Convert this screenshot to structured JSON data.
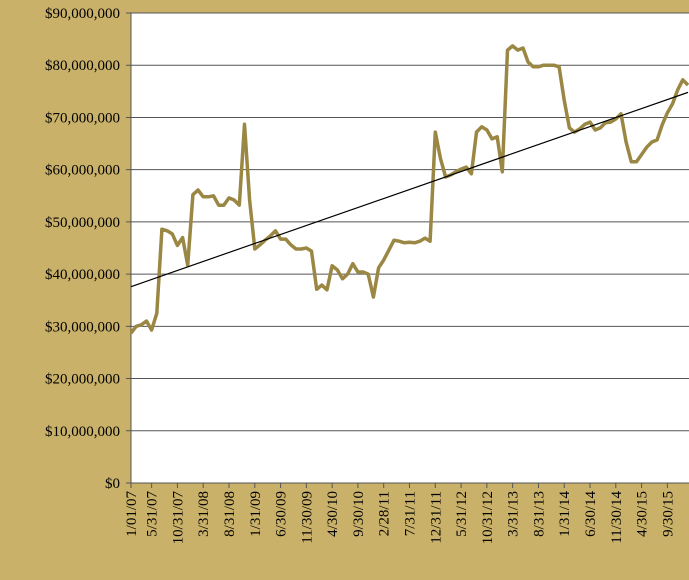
{
  "chart_data": {
    "type": "line",
    "categories": [
      "1/01/07",
      null,
      null,
      null,
      "5/31/07",
      null,
      null,
      null,
      null,
      "10/31/07",
      null,
      null,
      null,
      null,
      "3/31/08",
      null,
      null,
      null,
      null,
      "8/31/08",
      null,
      null,
      null,
      null,
      "1/31/09",
      null,
      null,
      null,
      null,
      "6/30/09",
      null,
      null,
      null,
      null,
      "11/30/09",
      null,
      null,
      null,
      null,
      "4/30/10",
      null,
      null,
      null,
      null,
      "9/30/10",
      null,
      null,
      null,
      null,
      "2/28/11",
      null,
      null,
      null,
      null,
      "7/31/11",
      null,
      null,
      null,
      null,
      "12/31/11",
      null,
      null,
      null,
      null,
      "5/31/12",
      null,
      null,
      null,
      null,
      "10/31/12",
      null,
      null,
      null,
      null,
      "3/31/13",
      null,
      null,
      null,
      null,
      "8/31/13",
      null,
      null,
      null,
      null,
      "1/31/14",
      null,
      null,
      null,
      null,
      "6/30/14",
      null,
      null,
      null,
      null,
      "11/30/14",
      null,
      null,
      null,
      null,
      "4/30/15",
      null,
      null,
      null,
      null,
      "9/30/15",
      null,
      null,
      null,
      null
    ],
    "series": [
      {
        "color": "#9a8743",
        "values": [
          28700000,
          30000000,
          30300000,
          31000000,
          29300000,
          32500000,
          48600000,
          48300000,
          47700000,
          45500000,
          47000000,
          41700000,
          55200000,
          56100000,
          54800000,
          54800000,
          55000000,
          53200000,
          53200000,
          54600000,
          54200000,
          53200000,
          68700000,
          54200000,
          44800000,
          45600000,
          46500000,
          47300000,
          48300000,
          46700000,
          46700000,
          45600000,
          44800000,
          44800000,
          45000000,
          44400000,
          37100000,
          37900000,
          37000000,
          41600000,
          40800000,
          39100000,
          40000000,
          42000000,
          40400000,
          40400000,
          40000000,
          35600000,
          41200000,
          42700000,
          44600000,
          46500000,
          46300000,
          46000000,
          46100000,
          46000000,
          46300000,
          46900000,
          46300000,
          67200000,
          62200000,
          58600000,
          59000000,
          59600000,
          60100000,
          60500000,
          59200000,
          67200000,
          68200000,
          67600000,
          65900000,
          66300000,
          59600000,
          82900000,
          83700000,
          82900000,
          83300000,
          80600000,
          79700000,
          79700000,
          80000000,
          80000000,
          80000000,
          79700000,
          73300000,
          68000000,
          67200000,
          67800000,
          68700000,
          69100000,
          67600000,
          68000000,
          69000000,
          69100000,
          69700000,
          70700000,
          65300000,
          61500000,
          61500000,
          62900000,
          64300000,
          65300000,
          65700000,
          68600000,
          70900000,
          72600000,
          75300000,
          77200000,
          76200000
        ]
      }
    ],
    "trendline": {
      "color": "#000000",
      "values": [
        37600000,
        74800000
      ]
    },
    "ylim": [
      0,
      90000000
    ],
    "yticks": [
      {
        "value": 0,
        "label": "$0"
      },
      {
        "value": 10000000,
        "label": "$10,000,000"
      },
      {
        "value": 20000000,
        "label": "$20,000,000"
      },
      {
        "value": 30000000,
        "label": "$30,000,000"
      },
      {
        "value": 40000000,
        "label": "$40,000,000"
      },
      {
        "value": 50000000,
        "label": "$50,000,000"
      },
      {
        "value": 60000000,
        "label": "$60,000,000"
      },
      {
        "value": 70000000,
        "label": "$70,000,000"
      },
      {
        "value": 80000000,
        "label": "$80,000,000"
      },
      {
        "value": 90000000,
        "label": "$90,000,000"
      }
    ],
    "grid": true
  }
}
